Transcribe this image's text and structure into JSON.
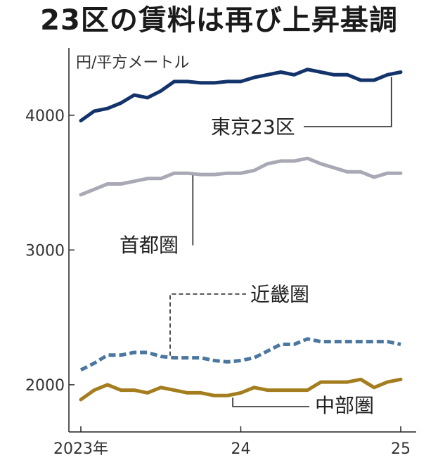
{
  "title": "23区の賃料は再び上昇基調",
  "chart_data": {
    "type": "line",
    "unit_label": "円/平方メートル",
    "x_ticks": [
      {
        "label": "2023年",
        "index": 0
      },
      {
        "label": "24",
        "index": 12
      },
      {
        "label": "25",
        "index": 24
      }
    ],
    "y_ticks": [
      2000,
      3000,
      4000
    ],
    "ylim": [
      1650,
      4500
    ],
    "grid": false,
    "series": [
      {
        "name": "東京23区",
        "color": "#13336b",
        "dash": false,
        "values": [
          3960,
          4030,
          4050,
          4090,
          4150,
          4130,
          4180,
          4250,
          4250,
          4240,
          4240,
          4250,
          4250,
          4280,
          4300,
          4320,
          4300,
          4340,
          4320,
          4300,
          4300,
          4260,
          4260,
          4300,
          4320
        ]
      },
      {
        "name": "首都圏",
        "color": "#a9a9b5",
        "dash": false,
        "values": [
          3410,
          3450,
          3490,
          3490,
          3510,
          3530,
          3530,
          3570,
          3570,
          3560,
          3560,
          3570,
          3570,
          3590,
          3640,
          3660,
          3660,
          3680,
          3640,
          3610,
          3580,
          3580,
          3540,
          3570,
          3570
        ]
      },
      {
        "name": "近畿圏",
        "color": "#4a76a0",
        "dash": true,
        "values": [
          2110,
          2160,
          2220,
          2220,
          2240,
          2240,
          2210,
          2200,
          2200,
          2200,
          2180,
          2170,
          2180,
          2200,
          2250,
          2300,
          2300,
          2340,
          2320,
          2320,
          2320,
          2320,
          2320,
          2320,
          2300
        ]
      },
      {
        "name": "中部圏",
        "color": "#a47d1e",
        "dash": false,
        "values": [
          1890,
          1960,
          2000,
          1960,
          1960,
          1940,
          1980,
          1960,
          1940,
          1940,
          1920,
          1920,
          1940,
          1980,
          1960,
          1960,
          1960,
          1960,
          2020,
          2020,
          2020,
          2040,
          1980,
          2020,
          2040
        ]
      }
    ],
    "annotations": [
      {
        "series": 0,
        "text": "東京23区"
      },
      {
        "series": 1,
        "text": "首都圏"
      },
      {
        "series": 2,
        "text": "近畿圏"
      },
      {
        "series": 3,
        "text": "中部圏"
      }
    ]
  }
}
